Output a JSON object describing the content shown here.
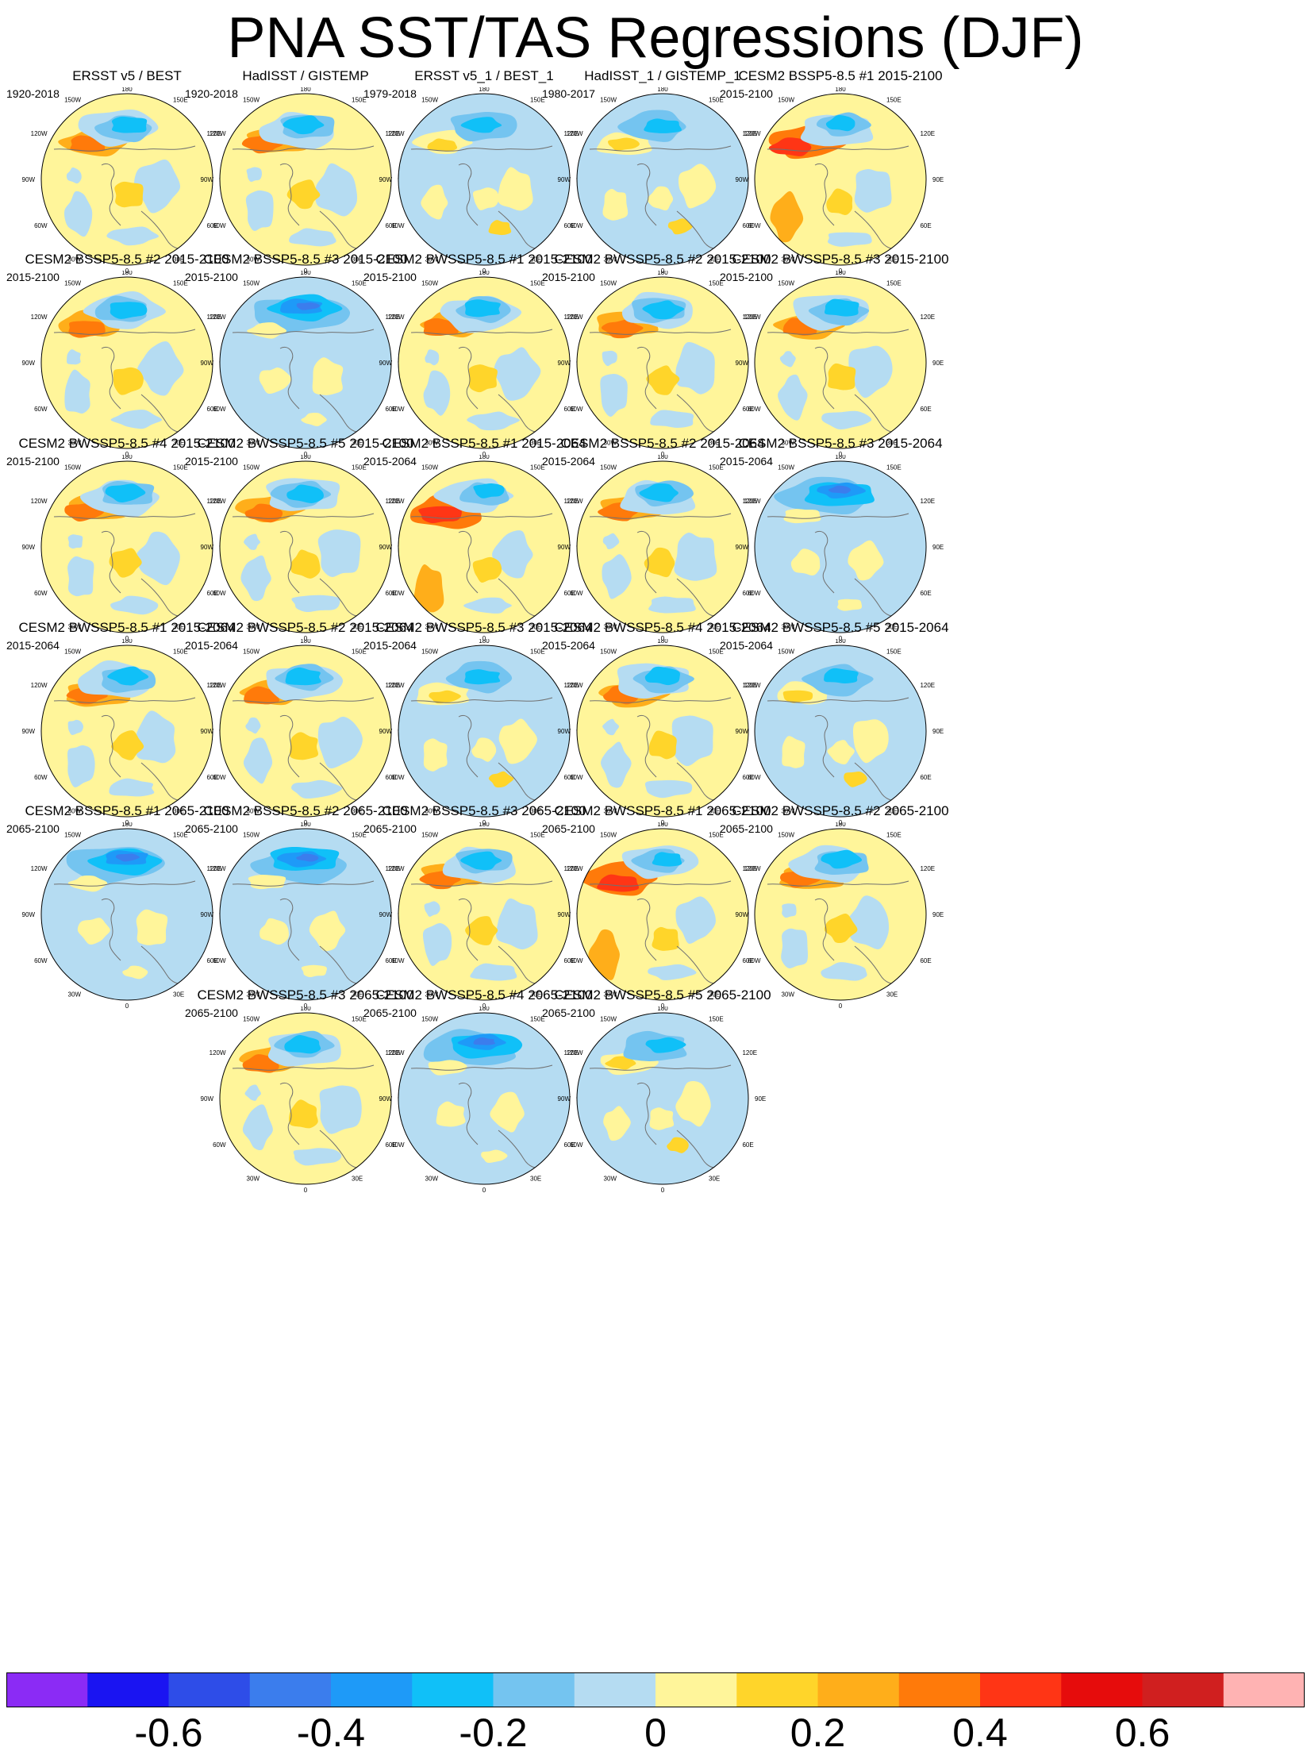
{
  "title": "PNA SST/TAS Regressions (DJF)",
  "panels": [
    {
      "title": "ERSST v5 / BEST",
      "period": "1920-2018",
      "style": "A"
    },
    {
      "title": "HadISST / GISTEMP",
      "period": "1920-2018",
      "style": "A"
    },
    {
      "title": "ERSST v5_1 / BEST_1",
      "period": "1979-2018",
      "style": "C"
    },
    {
      "title": "HadISST_1 / GISTEMP_1",
      "period": "1980-2017",
      "style": "C"
    },
    {
      "title": "CESM2 BSSP5-8.5 #1 2015-2100",
      "period": "2015-2100",
      "style": "B"
    },
    {
      "title": "CESM2 BSSP5-8.5 #2 2015-2100",
      "period": "2015-2100",
      "style": "A"
    },
    {
      "title": "CESM2 BSSP5-8.5 #3 2015-2100",
      "period": "2015-2100",
      "style": "D"
    },
    {
      "title": "CESM2 BWSSP5-8.5 #1 2015-2100",
      "period": "2015-2100",
      "style": "A"
    },
    {
      "title": "CESM2 BWSSP5-8.5 #2 2015-2100",
      "period": "2015-2100",
      "style": "A"
    },
    {
      "title": "CESM2 BWSSP5-8.5 #3 2015-2100",
      "period": "2015-2100",
      "style": "A"
    },
    {
      "title": "CESM2 BWSSP5-8.5 #4 2015-2100",
      "period": "2015-2100",
      "style": "A"
    },
    {
      "title": "CESM2 BWSSP5-8.5 #5 2015-2100",
      "period": "2015-2100",
      "style": "A"
    },
    {
      "title": "CESM2 BSSP5-8.5 #1 2015-2064",
      "period": "2015-2064",
      "style": "B"
    },
    {
      "title": "CESM2 BSSP5-8.5 #2 2015-2064",
      "period": "2015-2064",
      "style": "A"
    },
    {
      "title": "CESM2 BSSP5-8.5 #3 2015-2064",
      "period": "2015-2064",
      "style": "D"
    },
    {
      "title": "CESM2 BWSSP5-8.5 #1 2015-2064",
      "period": "2015-2064",
      "style": "A"
    },
    {
      "title": "CESM2 BWSSP5-8.5 #2 2015-2064",
      "period": "2015-2064",
      "style": "A"
    },
    {
      "title": "CESM2 BWSSP5-8.5 #3 2015-2064",
      "period": "2015-2064",
      "style": "C"
    },
    {
      "title": "CESM2 BWSSP5-8.5 #4 2015-2064",
      "period": "2015-2064",
      "style": "A"
    },
    {
      "title": "CESM2 BWSSP5-8.5 #5 2015-2064",
      "period": "2015-2064",
      "style": "C"
    },
    {
      "title": "CESM2 BSSP5-8.5 #1 2065-2100",
      "period": "2065-2100",
      "style": "D"
    },
    {
      "title": "CESM2 BSSP5-8.5 #2 2065-2100",
      "period": "2065-2100",
      "style": "D"
    },
    {
      "title": "CESM2 BSSP5-8.5 #3 2065-2100",
      "period": "2065-2100",
      "style": "A"
    },
    {
      "title": "CESM2 BWSSP5-8.5 #1 2065-2100",
      "period": "2065-2100",
      "style": "B"
    },
    {
      "title": "CESM2 BWSSP5-8.5 #2 2065-2100",
      "period": "2065-2100",
      "style": "A"
    },
    {
      "title": "CESM2 BWSSP5-8.5 #3 2065-2100",
      "period": "2065-2100",
      "style": "A"
    },
    {
      "title": "CESM2 BWSSP5-8.5 #4 2065-2100",
      "period": "2065-2100",
      "style": "D"
    },
    {
      "title": "CESM2 BWSSP5-8.5 #5 2065-2100",
      "period": "2065-2100",
      "style": "C"
    }
  ],
  "map_labels": {
    "lon_top": "180",
    "lon_bottom": "0",
    "left": [
      "150W",
      "120W",
      "90W",
      "60W",
      "30W"
    ],
    "right": [
      "150E",
      "120E",
      "90E",
      "60E",
      "30E"
    ]
  },
  "chart_data": {
    "type": "contour-map-grid",
    "title": "PNA SST/TAS Regressions (DJF)",
    "projection": "north polar stereographic",
    "colorbar": {
      "levels": [
        -0.7,
        -0.6,
        -0.5,
        -0.4,
        -0.3,
        -0.2,
        -0.1,
        0,
        0.1,
        0.2,
        0.3,
        0.4,
        0.5,
        0.6,
        0.7
      ],
      "colors": [
        "#8b2bf5",
        "#1a14f2",
        "#2e4de8",
        "#3b7ded",
        "#1e9af8",
        "#10c0f8",
        "#74c4f0",
        "#b5dcf2",
        "#fff59a",
        "#ffd52a",
        "#ffae1a",
        "#ff7a0a",
        "#ff3515",
        "#e60c0c",
        "#d01f1f",
        "#ffb3b3"
      ],
      "tick_labels": [
        "-0.6",
        "-0.4",
        "-0.2",
        "0",
        "0.2",
        "0.4",
        "0.6"
      ]
    }
  }
}
